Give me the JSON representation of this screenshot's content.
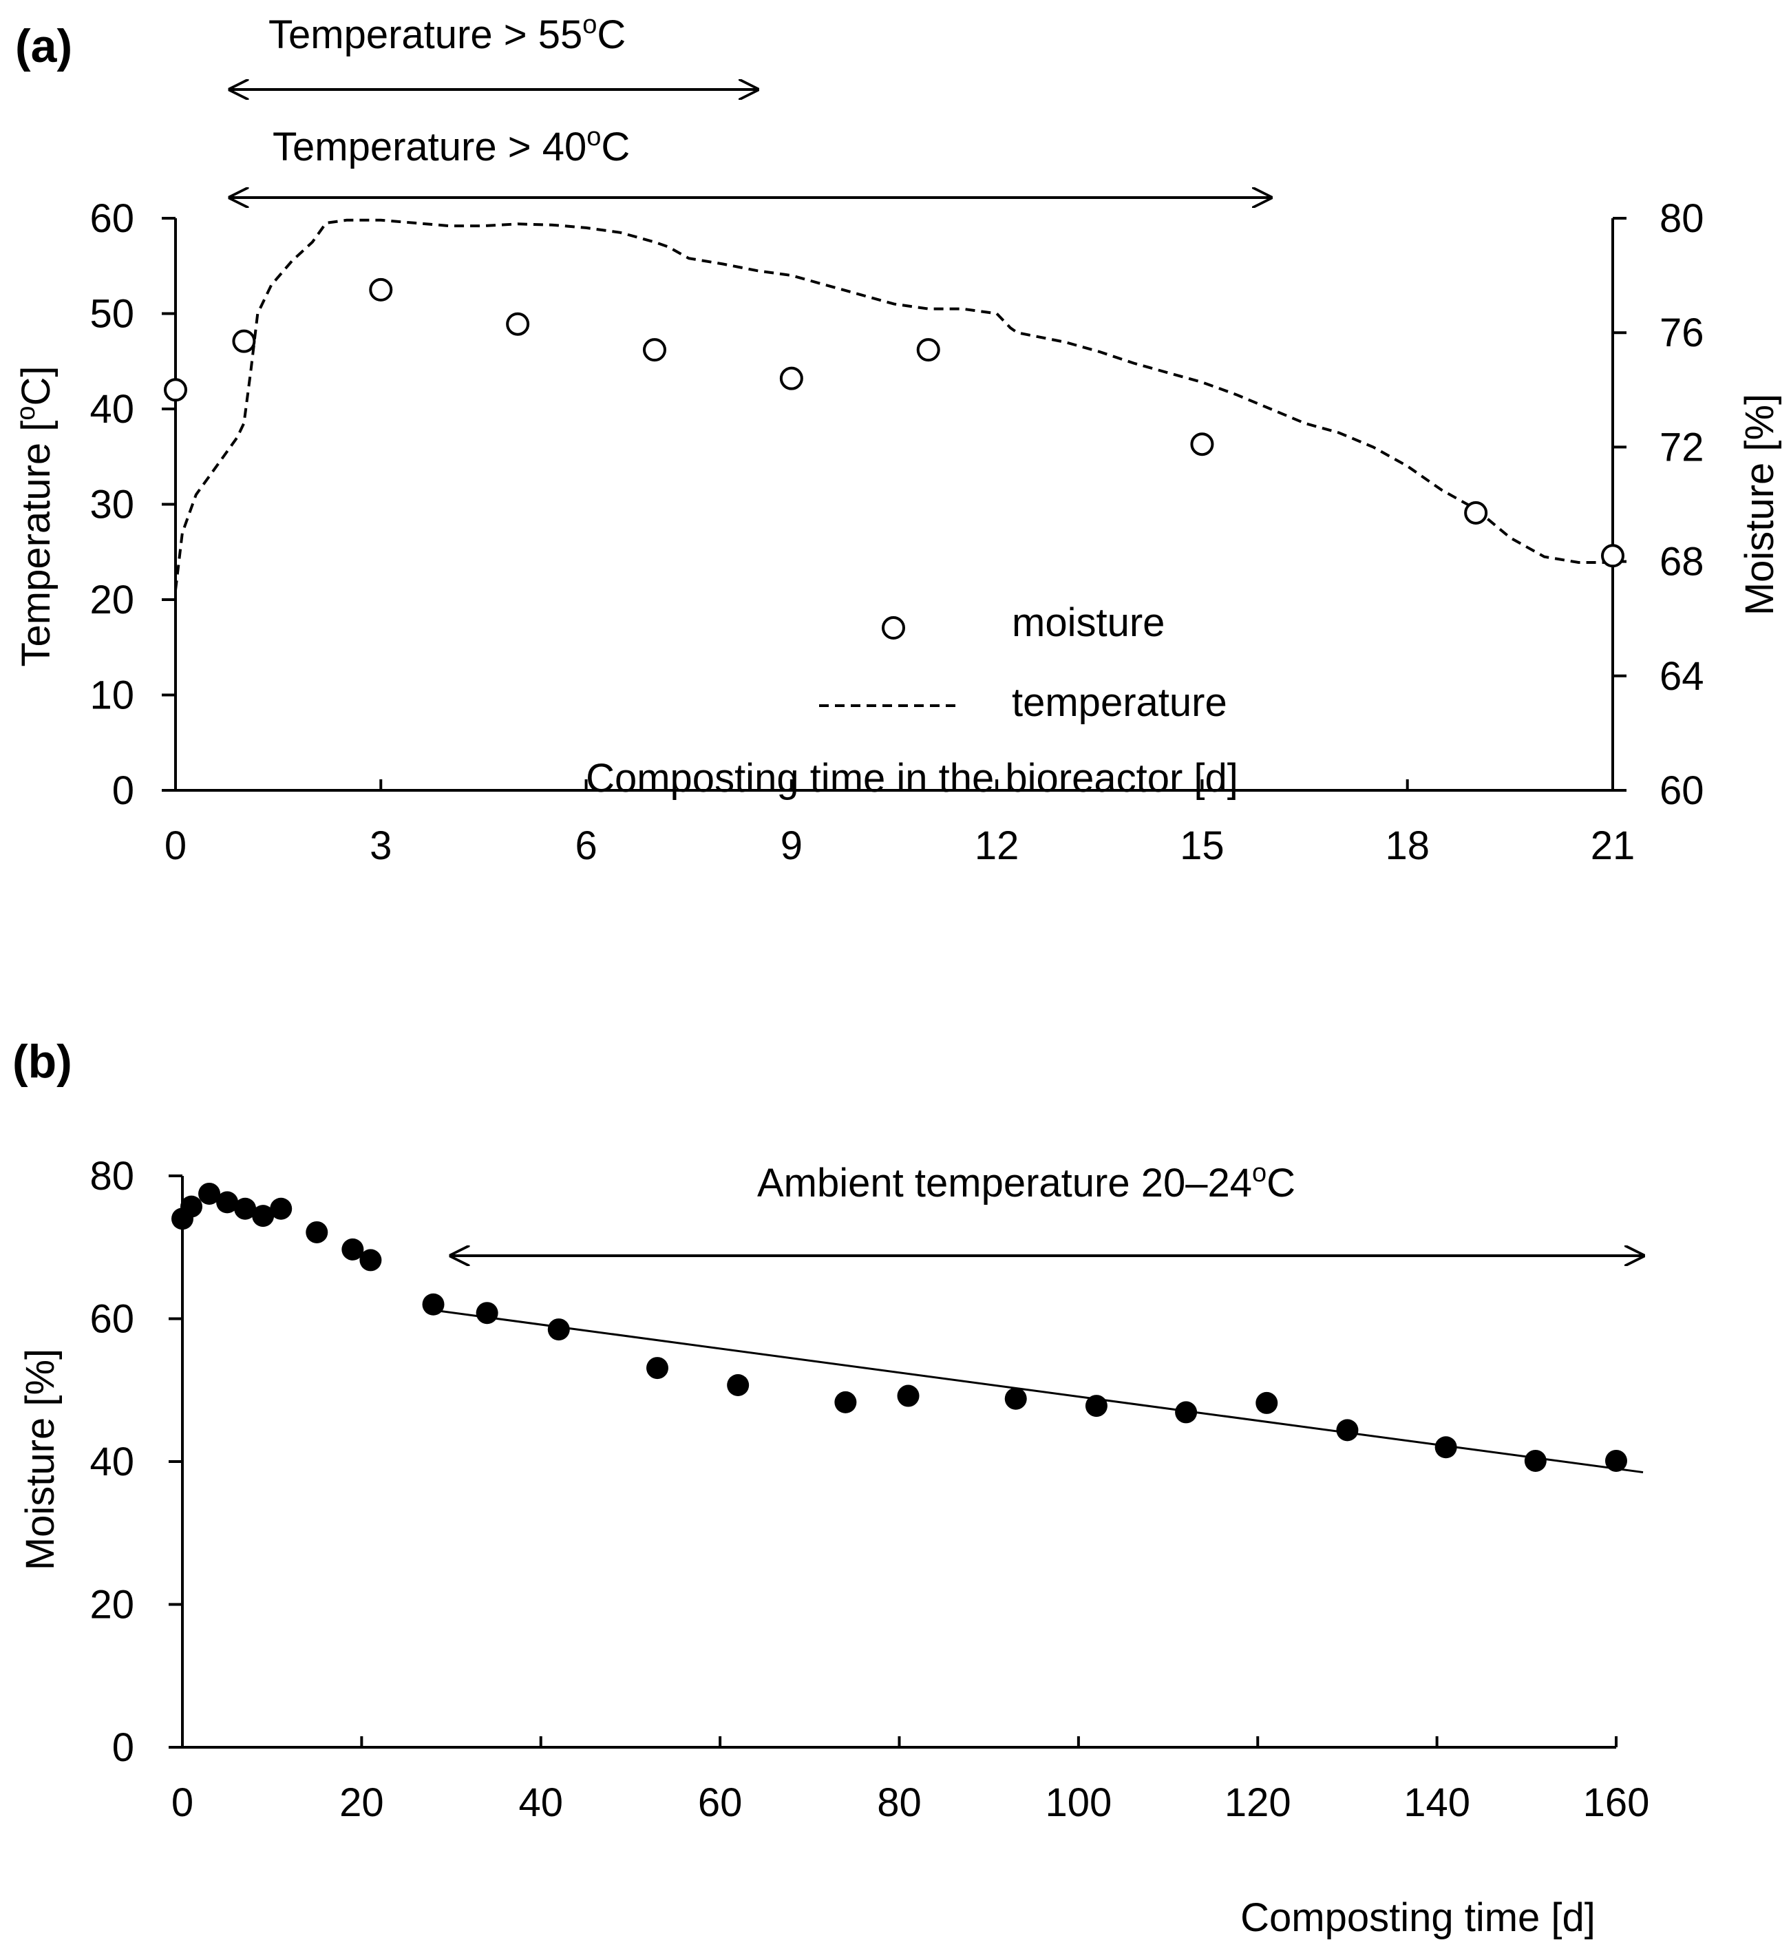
{
  "figure": {
    "panel_a_label": "(a)",
    "panel_b_label": "(b)"
  },
  "chart_data": [
    {
      "type": "line",
      "panel": "(a)",
      "xlabel": "Composting time in the bioreactor [d]",
      "ylabel_left": "Temperature [°C]",
      "ylabel_left_parts": [
        "Temperature  [",
        "o",
        "C]"
      ],
      "ylabel_right": "Moisture [%]",
      "xlim": [
        0,
        21
      ],
      "ylim_left": [
        0,
        60
      ],
      "ylim_right": [
        60,
        80
      ],
      "x_ticks": [
        0,
        3,
        6,
        9,
        12,
        15,
        18,
        21
      ],
      "y_left_ticks": [
        0,
        10,
        20,
        30,
        40,
        50,
        60
      ],
      "y_right_ticks": [
        60,
        64,
        68,
        72,
        76,
        80
      ],
      "legend_position": "center-right",
      "annotations": [
        {
          "text": "Temperature > 55°C",
          "parts": [
            "Temperature  > 55",
            "o",
            "C"
          ],
          "x_start": 0.8,
          "x_end": 8.5
        },
        {
          "text": "Temperature > 40°C",
          "parts": [
            "Temperature  > 40",
            "o",
            "C"
          ],
          "x_start": 0.8,
          "x_end": 16.0
        }
      ],
      "series": [
        {
          "name": "moisture",
          "axis": "right",
          "marker": "open-circle",
          "x": [
            0,
            1,
            3,
            5,
            7,
            9,
            11,
            15,
            19,
            21
          ],
          "y": [
            74.0,
            75.7,
            77.5,
            76.3,
            75.4,
            74.4,
            75.4,
            72.1,
            69.7,
            68.2
          ]
        },
        {
          "name": "temperature",
          "axis": "left",
          "style": "dashed",
          "x": [
            0,
            0.1,
            0.3,
            0.6,
            0.9,
            1.0,
            1.1,
            1.2,
            1.4,
            1.7,
            2.0,
            2.2,
            2.5,
            3.0,
            3.5,
            4.0,
            4.5,
            5.0,
            5.5,
            6.0,
            6.5,
            7.0,
            7.2,
            7.5,
            8.0,
            8.5,
            9.0,
            9.5,
            10.0,
            10.5,
            11.0,
            11.5,
            12.0,
            12.2,
            12.3,
            13.0,
            13.5,
            14.0,
            14.5,
            15.0,
            15.5,
            16.0,
            16.5,
            17.0,
            17.5,
            18.0,
            18.5,
            19.0,
            19.5,
            20.0,
            20.5,
            21.0
          ],
          "y": [
            21,
            27,
            31,
            34,
            37,
            38.5,
            44,
            50,
            53,
            55.5,
            57.5,
            59.5,
            59.8,
            59.8,
            59.5,
            59.2,
            59.2,
            59.4,
            59.3,
            59.0,
            58.5,
            57.5,
            57.0,
            55.8,
            55.2,
            54.5,
            54.0,
            53.0,
            52.0,
            51.0,
            50.5,
            50.5,
            50.0,
            48.5,
            48.0,
            47.0,
            46.0,
            44.8,
            43.8,
            42.8,
            41.5,
            40.0,
            38.5,
            37.5,
            36.0,
            34.0,
            31.5,
            29.5,
            26.5,
            24.5,
            23.9,
            23.9
          ]
        }
      ]
    },
    {
      "type": "scatter",
      "panel": "(b)",
      "xlabel": "Composting time [d]",
      "ylabel": "Moisture  [%]",
      "xlim": [
        0,
        160
      ],
      "ylim": [
        0,
        80
      ],
      "x_ticks": [
        0,
        20,
        40,
        60,
        80,
        100,
        120,
        140,
        160
      ],
      "y_ticks": [
        0,
        20,
        40,
        60,
        80
      ],
      "annotations": [
        {
          "text": "Ambient temperature 20–24°C",
          "parts": [
            "Ambient temperature  20–24",
            "o",
            "C"
          ],
          "x_start": 30,
          "x_end": 163
        }
      ],
      "series": [
        {
          "name": "moisture",
          "marker": "filled-circle",
          "x": [
            0,
            1,
            3,
            5,
            7,
            9,
            11,
            15,
            19,
            21,
            28,
            34,
            42,
            53,
            62,
            74,
            81,
            93,
            102,
            112,
            121,
            130,
            141,
            151,
            160
          ],
          "y": [
            74.0,
            75.7,
            77.5,
            76.3,
            75.4,
            74.4,
            75.4,
            72.1,
            69.7,
            68.2,
            62.0,
            60.8,
            58.5,
            53.1,
            50.7,
            48.3,
            49.2,
            48.8,
            47.8,
            46.9,
            48.2,
            44.4,
            42.0,
            40.1,
            40.1
          ]
        },
        {
          "name": "trend",
          "style": "solid-line",
          "x": [
            28,
            163
          ],
          "y": [
            61.2,
            38.5
          ]
        }
      ]
    }
  ]
}
